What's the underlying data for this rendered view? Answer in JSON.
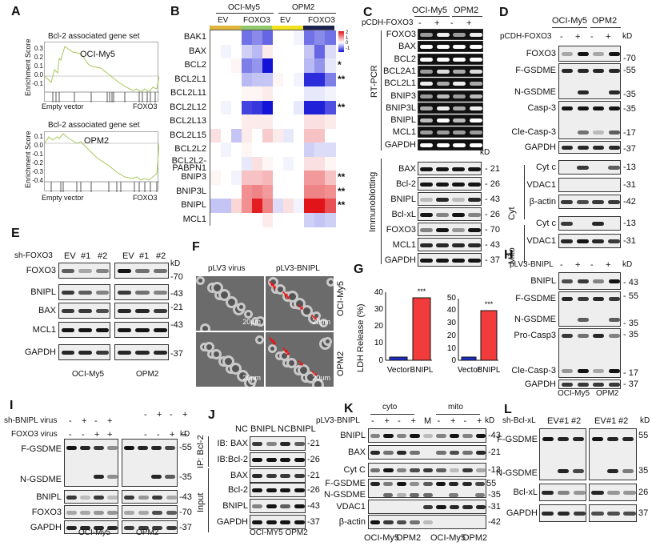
{
  "panels": {
    "A": {
      "label": "A",
      "plots": [
        {
          "title": "Bcl-2 associated gene set",
          "cell_line": "OCI-My5",
          "ylabel": "Enrichment Score",
          "yticks": [
            "0.3",
            "0.2",
            "0.1",
            "0.0",
            "-0.1"
          ],
          "xleft": "Empty vector",
          "xright": "FOXO3"
        },
        {
          "title": "Bcl-2 associated gene set",
          "cell_line": "OPM2",
          "ylabel": "Enrichment Score",
          "yticks": [
            "0.1",
            "0.0",
            "-0.1",
            "-0.2",
            "-0.3",
            "-0.4"
          ],
          "xleft": "Empty vector",
          "xright": "FOXO3"
        }
      ]
    },
    "B": {
      "label": "B",
      "groups": [
        "OCI-My5",
        "OPM2"
      ],
      "subgroups": [
        "EV",
        "FOXO3",
        "EV",
        "FOXO3"
      ],
      "subgroup_colors": [
        "#e0b43a",
        "#8fc96b",
        "#f2e21d",
        "#1c2250"
      ],
      "genes": [
        "BAK1",
        "BAX",
        "BCL2",
        "BCL2L1",
        "BCL2L11",
        "BCL2L12",
        "BCL2L13",
        "BCL2L15",
        "BCL2L2",
        "BCL2L2-PABPN1",
        "BNIP3",
        "BNIP3L",
        "BNIPL",
        "MCL1"
      ],
      "gene_display": [
        "BAK1",
        "BAX",
        "BCL2",
        "BCL2L1",
        "BCL2L11",
        "BCL2L12",
        "BCL2L13",
        "BCL2L15",
        "BCL2L2",
        "BCL2L2-",
        "PABPN1",
        "BNIP3",
        "BNIP3L",
        "BNIPL",
        "MCL1"
      ],
      "significance": [
        "",
        "",
        "*",
        "**",
        "",
        "**",
        "",
        "",
        "",
        "",
        "**",
        "**",
        "**",
        ""
      ],
      "legend_ticks": [
        "2",
        "1",
        "0",
        "-1"
      ]
    },
    "C": {
      "label": "C",
      "cell_lines": [
        "OCI-My5",
        "OPM2"
      ],
      "treatment": "pCDH-FOXO3",
      "lanes": [
        "-",
        "+",
        "-",
        "+"
      ],
      "rtpcr_label": "RT-PCR",
      "rtpcr_rows": [
        "FOXO3",
        "BAX",
        "BCL2",
        "BCL2A1",
        "BCL2L1",
        "BNIP3",
        "BNIP3L",
        "BNIPL",
        "MCL1",
        "GAPDH"
      ],
      "ib_label": "Immunoblotting",
      "kd": "kD",
      "ib_rows": [
        {
          "name": "BAX",
          "kd": "21"
        },
        {
          "name": "Bcl-2",
          "kd": "26"
        },
        {
          "name": "BNIPL",
          "kd": "43"
        },
        {
          "name": "Bcl-xL",
          "kd": "26"
        },
        {
          "name": "FOXO3",
          "kd": "70"
        },
        {
          "name": "MCL1",
          "kd": "43"
        },
        {
          "name": "GAPDH",
          "kd": "37"
        }
      ]
    },
    "D": {
      "label": "D",
      "cell_lines": [
        "OCI-My5",
        "OPM2"
      ],
      "treatment": "pCDH-FOXO3",
      "lanes": [
        "-",
        "+",
        "-",
        "+"
      ],
      "kd": "kD",
      "rows": [
        {
          "name": "FOXO3",
          "kd": "70"
        },
        {
          "name": "F-GSDME",
          "kd": "55"
        },
        {
          "name": "N-GSDME",
          "kd": "35"
        },
        {
          "name": "Casp-3",
          "kd": "35"
        },
        {
          "name": "Cle-Casp-3",
          "kd": "17"
        },
        {
          "name": "GAPDH",
          "kd": "37"
        },
        {
          "name": "Cyt c",
          "kd": "13"
        },
        {
          "name": "VDAC1",
          "kd": "31"
        },
        {
          "name": "β-actin",
          "kd": "42"
        },
        {
          "name": "Cyt c",
          "kd": "13"
        },
        {
          "name": "VDAC1",
          "kd": "31"
        }
      ],
      "fraction_cyt": "Cyt",
      "fraction_mito": "Mito"
    },
    "E": {
      "label": "E",
      "treatment": "sh-FOXO3",
      "lanes": [
        "EV",
        "#1",
        "#2",
        "EV",
        "#1",
        "#2"
      ],
      "kd": "kD",
      "rows": [
        {
          "name": "FOXO3",
          "kd": "70"
        },
        {
          "name": "BNIPL",
          "kd": "43"
        },
        {
          "name": "BAX",
          "kd": "21"
        },
        {
          "name": "MCL1",
          "kd": "43"
        },
        {
          "name": "GAPDH",
          "kd": "37"
        }
      ],
      "cell_lines": [
        "OCI-My5",
        "OPM2"
      ]
    },
    "F": {
      "label": "F",
      "columns": [
        "pLV3 virus",
        "pLV3-BNIPL"
      ],
      "rows": [
        "OCI-My5",
        "OPM2"
      ],
      "scale_bar": "20μm"
    },
    "G": {
      "label": "G",
      "ylabel": "LDH Release (%)",
      "sig": "***"
    },
    "H": {
      "label": "H",
      "treatment": "pLV3-BNIPL",
      "lanes": [
        "-",
        "+",
        "-",
        "+"
      ],
      "kd": "kD",
      "rows": [
        {
          "name": "BNIPL",
          "kd": "43"
        },
        {
          "name": "F-GSDME",
          "kd": "55"
        },
        {
          "name": "N-GSDME",
          "kd": "35"
        },
        {
          "name": "Pro-Casp3",
          "kd": "35"
        },
        {
          "name": "Cle-Casp-3",
          "kd": "17"
        },
        {
          "name": "GAPDH",
          "kd": "37"
        }
      ],
      "cell_lines": [
        "OCI-My5",
        "OPM2"
      ]
    },
    "I": {
      "label": "I",
      "treatment1": "sh-BNIPL virus",
      "treatment2": "FOXO3 virus",
      "lanes1": [
        "-",
        "+",
        "-",
        "+",
        "-",
        "+",
        "-",
        "+"
      ],
      "lanes2": [
        "-",
        "-",
        "+",
        "+",
        "-",
        "-",
        "+",
        "+"
      ],
      "kd": "kD",
      "rows": [
        {
          "name": "F-GSDME",
          "kd": "55"
        },
        {
          "name": "N-GSDME",
          "kd": "35"
        },
        {
          "name": "BNIPL",
          "kd": "43"
        },
        {
          "name": "FOXO3",
          "kd": "70"
        },
        {
          "name": "GAPDH",
          "kd": "37"
        }
      ],
      "cell_lines": [
        "OCI-My5",
        "OPM2"
      ]
    },
    "J": {
      "label": "J",
      "lanes": [
        "NC",
        "BNIPL",
        "NC",
        "BNIPL"
      ],
      "ip_label": "IP: Bcl-2",
      "input_label": "Input",
      "rows": [
        {
          "name": "IB: BAX",
          "kd": "21"
        },
        {
          "name": "IB:Bcl-2",
          "kd": "26"
        },
        {
          "name": "BAX",
          "kd": "21"
        },
        {
          "name": "Bcl-2",
          "kd": "26"
        },
        {
          "name": "BNIPL",
          "kd": "43"
        },
        {
          "name": "GAPDH",
          "kd": "37"
        }
      ],
      "cell_lines": "OCI-MY5 OPM2"
    },
    "K": {
      "label": "K",
      "fractions": [
        "cyto",
        "mito"
      ],
      "treatment": "pLV3-BNIPL",
      "lanes": [
        "-",
        "+",
        "-",
        "+",
        "M",
        "-",
        "+",
        "-",
        "+"
      ],
      "kd": "kD",
      "rows": [
        {
          "name": "BNIPL",
          "kd": "43"
        },
        {
          "name": "BAX",
          "kd": "21"
        },
        {
          "name": "Cyt C",
          "kd": "13"
        },
        {
          "name": "F-GSDME",
          "kd": "55"
        },
        {
          "name": "N-GSDME",
          "kd": "35"
        },
        {
          "name": "VDAC1",
          "kd": "31"
        },
        {
          "name": "β-actin",
          "kd": "42"
        }
      ],
      "cell_lines": [
        "OCI-My5",
        "OPM2",
        "OCI-My5",
        "OPM2"
      ]
    },
    "L": {
      "label": "L",
      "treatment": "sh-Bcl-xL",
      "lanes": [
        "EV",
        "#1",
        "#2",
        "EV",
        "#1",
        "#2"
      ],
      "kd": "kD",
      "rows": [
        {
          "name": "F-GSDME",
          "kd": "55"
        },
        {
          "name": "N-GSDME",
          "kd": "35"
        },
        {
          "name": "Bcl-xL",
          "kd": "26"
        },
        {
          "name": "GAPDH",
          "kd": "37"
        }
      ]
    }
  },
  "chart_data": [
    {
      "type": "line",
      "title": "Bcl-2 associated gene set (OCI-My5)",
      "xlabel": "Empty vector → FOXO3",
      "ylabel": "Enrichment Score",
      "ylim": [
        -0.15,
        0.35
      ],
      "x": [
        0,
        5,
        10,
        15,
        20,
        30,
        40,
        50,
        60,
        70,
        80,
        85,
        90,
        95,
        100
      ],
      "values": [
        0.0,
        -0.05,
        0.08,
        0.25,
        0.32,
        0.25,
        0.18,
        0.13,
        0.05,
        -0.05,
        -0.14,
        -0.1,
        -0.12,
        -0.1,
        0.02
      ]
    },
    {
      "type": "line",
      "title": "Bcl-2 associated gene set (OPM2)",
      "xlabel": "Empty vector → FOXO3",
      "ylabel": "Enrichment Score",
      "ylim": [
        -0.45,
        0.15
      ],
      "x": [
        0,
        5,
        10,
        15,
        20,
        30,
        40,
        50,
        60,
        70,
        80,
        85,
        90,
        95,
        100
      ],
      "values": [
        0.0,
        0.07,
        0.05,
        0.08,
        0.11,
        0.02,
        -0.1,
        -0.2,
        -0.25,
        -0.34,
        -0.36,
        -0.38,
        -0.4,
        -0.33,
        0.0
      ]
    },
    {
      "type": "heatmap",
      "title": "Panel B heatmap (z-score)",
      "rows": [
        "BAK1",
        "BAX",
        "BCL2",
        "BCL2L1",
        "BCL2L11",
        "BCL2L12",
        "BCL2L13",
        "BCL2L15",
        "BCL2L2",
        "BCL2L2-PABPN1",
        "BNIP3",
        "BNIP3L",
        "BNIPL",
        "MCL1"
      ],
      "columns": [
        "OCI-My5 EV 1",
        "OCI-My5 EV 2",
        "OCI-My5 EV 3",
        "OCI-My5 FOXO3 1",
        "OCI-My5 FOXO3 2",
        "OCI-My5 FOXO3 3",
        "OPM2 EV 1",
        "OPM2 EV 2",
        "OPM2 EV 3",
        "OPM2 FOXO3 1",
        "OPM2 FOXO3 2",
        "OPM2 FOXO3 3"
      ],
      "values": [
        [
          0,
          0,
          0,
          -1.2,
          -1.0,
          -1.3,
          0,
          0,
          -0.1,
          -1.2,
          -1.0,
          -1.2
        ],
        [
          0,
          -0.1,
          0,
          -0.4,
          -0.6,
          0.2,
          0,
          0,
          0,
          -0.5,
          -1.3,
          -0.3
        ],
        [
          0,
          0,
          0.1,
          -1.1,
          -0.9,
          -2.0,
          0,
          0,
          0,
          -0.6,
          -0.9,
          -0.2
        ],
        [
          0,
          0,
          0,
          -0.6,
          -0.5,
          -0.5,
          0.1,
          0,
          -0.1,
          -1.8,
          -1.8,
          -1.1
        ],
        [
          0,
          0,
          0,
          0.1,
          0.1,
          0.2,
          0,
          0,
          0,
          -0.2,
          -0.2,
          -0.1
        ],
        [
          0,
          -0.1,
          0,
          -1.6,
          -1.7,
          -2.0,
          0,
          0,
          -0.2,
          -1.9,
          -1.9,
          -1.5
        ],
        [
          0,
          0,
          0,
          0.2,
          0.2,
          0.2,
          0,
          0,
          0,
          0.3,
          0.3,
          0.2
        ],
        [
          0.3,
          0,
          -0.5,
          0.2,
          0,
          0.5,
          0.2,
          -0.2,
          0,
          0.6,
          0.6,
          0
        ],
        [
          0,
          -0.1,
          0,
          0.1,
          0,
          0,
          0,
          0,
          0,
          -0.4,
          -0.3,
          -0.3
        ],
        [
          0,
          0,
          0,
          -0.2,
          0.3,
          0.1,
          0,
          -0.1,
          0,
          0.3,
          0.3,
          0.1
        ],
        [
          0.1,
          0,
          -0.1,
          0.6,
          0.6,
          0.7,
          0,
          0,
          0,
          1.0,
          1.0,
          0.6
        ],
        [
          0,
          0,
          0,
          1.1,
          1.2,
          1.0,
          0,
          0,
          0,
          1.2,
          1.2,
          1.1
        ],
        [
          -0.5,
          -0.5,
          0.4,
          1.1,
          2.2,
          1.2,
          -0.3,
          0.3,
          -0.1,
          2.3,
          2.3,
          1.7
        ],
        [
          0,
          0,
          0,
          0,
          0,
          0.2,
          0,
          0,
          0,
          -0.4,
          -0.5,
          -0.4
        ]
      ],
      "legend_range": [
        -1,
        2
      ]
    },
    {
      "type": "bar",
      "title": "LDH release OCI-My5",
      "categories": [
        "Vector",
        "BNIPL"
      ],
      "values": [
        1.8,
        36.5
      ],
      "colors": [
        "#1a2ecc",
        "#f23b3b"
      ],
      "ylabel": "LDH Release (%)",
      "yticks": [
        0,
        10,
        20,
        30,
        40
      ],
      "ylim": [
        0,
        40
      ],
      "annotations": [
        "",
        "***"
      ]
    },
    {
      "type": "bar",
      "title": "LDH release OPM2",
      "categories": [
        "Vector",
        "BNIPL"
      ],
      "values": [
        2.3,
        39.8
      ],
      "colors": [
        "#1a2ecc",
        "#f23b3b"
      ],
      "yticks": [
        0,
        10,
        20,
        30,
        40,
        50
      ],
      "ylim": [
        0,
        50
      ],
      "annotations": [
        "",
        "***"
      ]
    }
  ]
}
